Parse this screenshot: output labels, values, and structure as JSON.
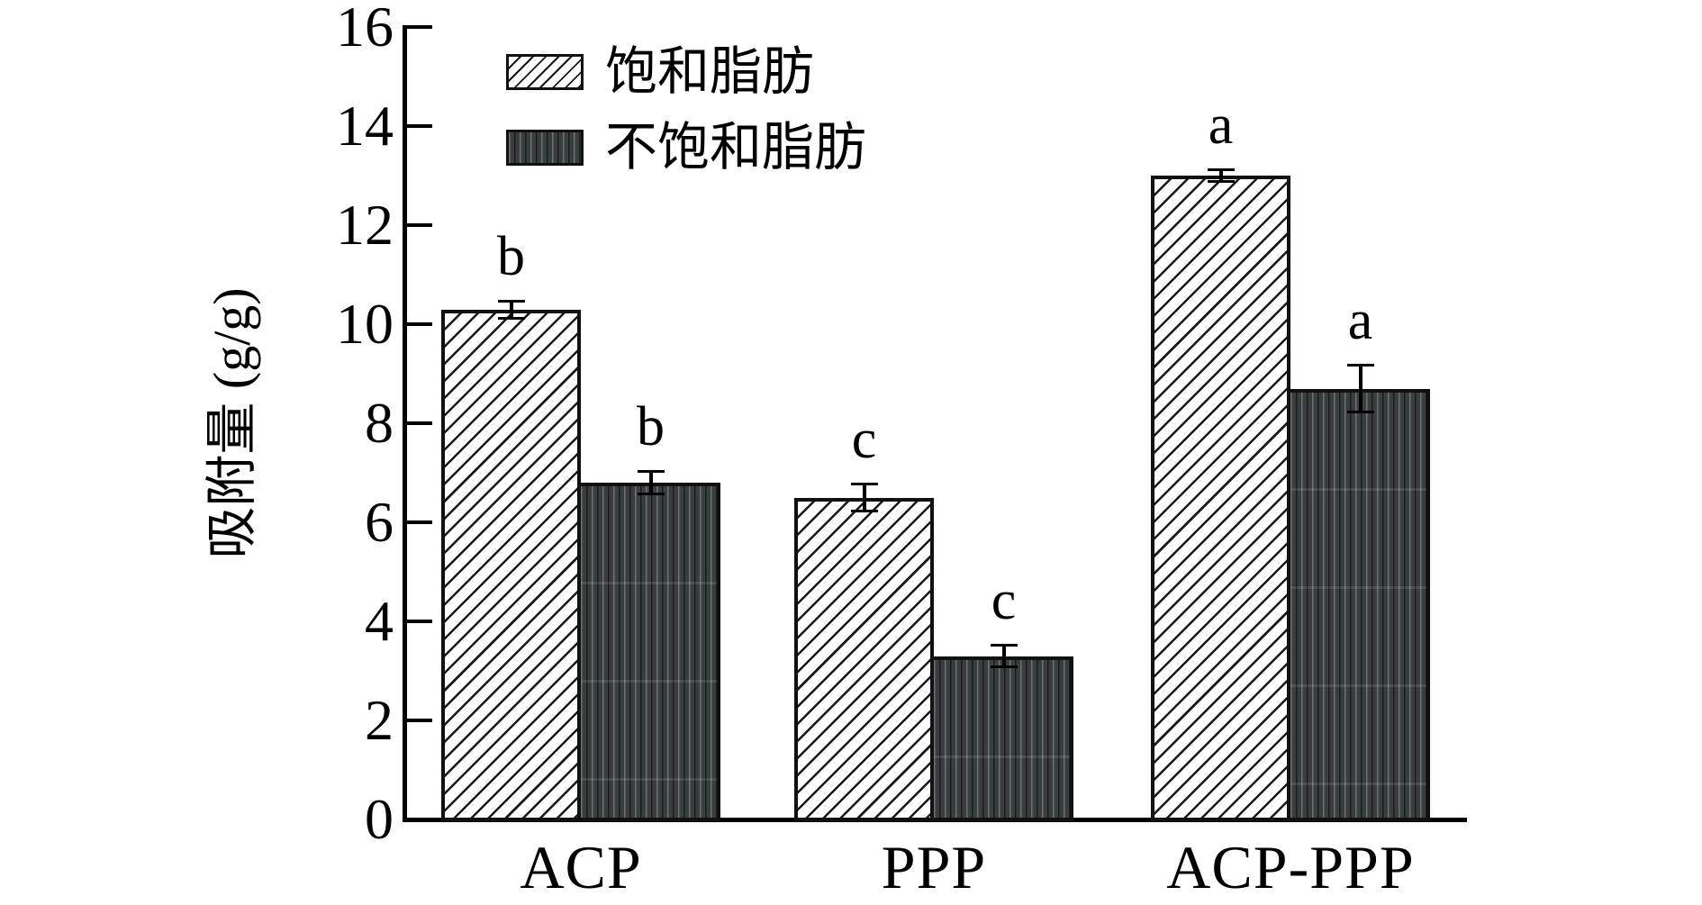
{
  "chart_data": {
    "type": "bar",
    "title": "",
    "categories": [
      "ACP",
      "PPP",
      "ACP-PPP"
    ],
    "series": [
      {
        "name": "饱和脂肪",
        "pattern": "diagonal-hatch",
        "values": [
          10.3,
          6.5,
          13.0
        ],
        "errors": [
          0.2,
          0.3,
          0.15
        ],
        "sig_letters": [
          "b",
          "c",
          "a"
        ]
      },
      {
        "name": "不饱和脂肪",
        "pattern": "dark-vertical-stripe",
        "values": [
          6.8,
          3.3,
          8.7
        ],
        "errors": [
          0.25,
          0.25,
          0.5
        ],
        "sig_letters": [
          "b",
          "c",
          "a"
        ]
      }
    ],
    "ylabel": "吸附量 (g/g)",
    "ylim": [
      0,
      16
    ],
    "ytick_step": 2,
    "yticks": [
      0,
      2,
      4,
      6,
      8,
      10,
      12,
      14,
      16
    ],
    "legend_position": "top-left-inside",
    "grid": false,
    "error_bars": true,
    "colors": {
      "axis": "#000000",
      "hatch_line": "#191919",
      "dark_bar_fill": "#3a3e3e",
      "background": "#ffffff"
    }
  }
}
